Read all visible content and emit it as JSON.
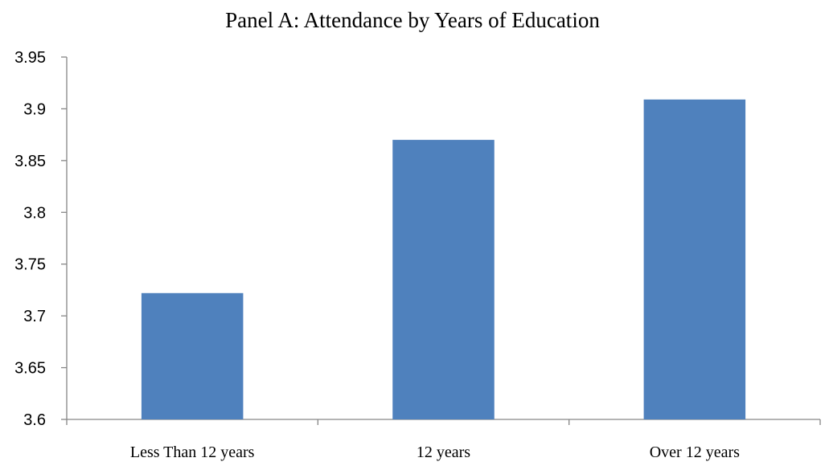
{
  "chart_data": {
    "type": "bar",
    "title": "Panel A: Attendance by Years of Education",
    "xlabel": "",
    "ylabel": "",
    "categories": [
      "Less Than 12 years",
      "12 years",
      "Over 12 years"
    ],
    "values": [
      3.722,
      3.87,
      3.909
    ],
    "ylim": [
      3.6,
      3.95
    ],
    "yticks": [
      "3.6",
      "3.65",
      "3.7",
      "3.75",
      "3.8",
      "3.85",
      "3.9",
      "3.95"
    ],
    "grid": false,
    "legend": "none",
    "colors": {
      "bar": "#4f81bd",
      "axis": "#868686"
    }
  }
}
